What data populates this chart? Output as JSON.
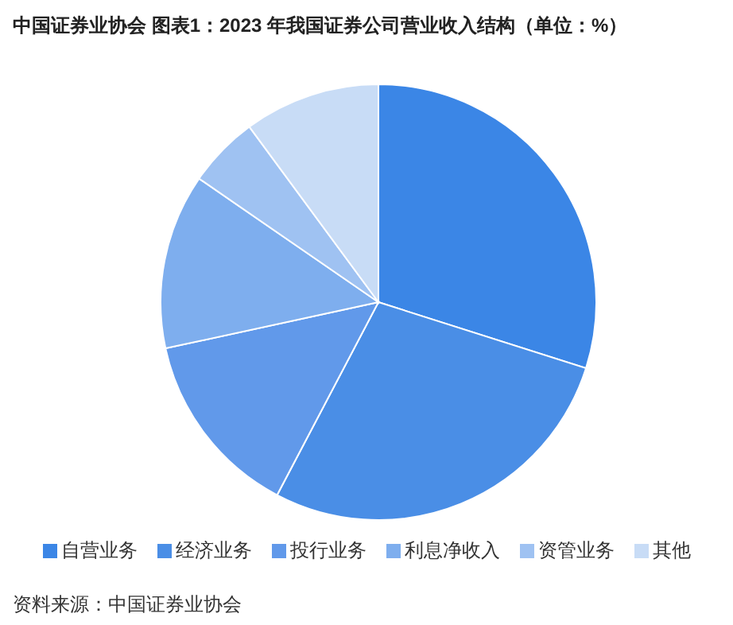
{
  "chart_data": {
    "type": "pie",
    "title": "中国证券业协会  图表1：2023 年我国证券公司营业收入结构（单位：%）",
    "categories": [
      "自营业务",
      "经济业务",
      "投行业务",
      "利息净收入",
      "资管业务",
      "其他"
    ],
    "values": [
      29.9,
      27.8,
      13.9,
      13.0,
      5.3,
      10.1
    ],
    "colors": [
      "#3b86e6",
      "#4a8ee6",
      "#6199ea",
      "#7eaeee",
      "#9fc2f2",
      "#c8dcf6"
    ],
    "legend": "bottom",
    "annotations": [
      "资料来源：中国证券业协会"
    ]
  }
}
